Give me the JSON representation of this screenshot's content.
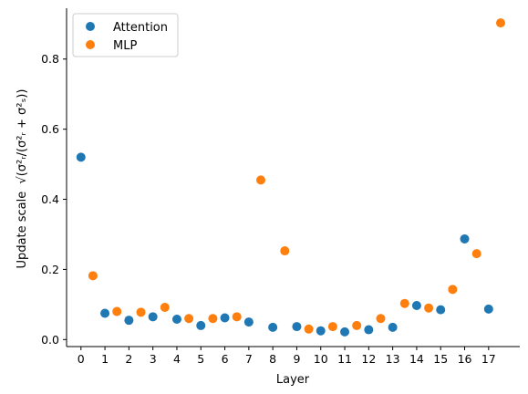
{
  "chart_data": {
    "type": "scatter",
    "xlabel": "Layer",
    "ylabel": "Update scale",
    "ylabel_math": "√(σ²ᵣ/(σ²ᵣ + σ²ₛ))",
    "xlim": [
      -0.6,
      18.3
    ],
    "ylim": [
      -0.02,
      0.945
    ],
    "x_ticks": [
      0,
      1,
      2,
      3,
      4,
      5,
      6,
      7,
      8,
      9,
      10,
      11,
      12,
      13,
      14,
      15,
      16,
      17
    ],
    "y_ticks": [
      0.0,
      0.2,
      0.4,
      0.6,
      0.8
    ],
    "y_tick_labels": [
      "0.0",
      "0.2",
      "0.4",
      "0.6",
      "0.8"
    ],
    "grid": false,
    "legend_position": "top-left",
    "series": [
      {
        "name": "Attention",
        "color": "#1f77b4",
        "points": [
          {
            "x": 0,
            "y": 0.52
          },
          {
            "x": 1,
            "y": 0.075
          },
          {
            "x": 2,
            "y": 0.055
          },
          {
            "x": 3,
            "y": 0.065
          },
          {
            "x": 4,
            "y": 0.058
          },
          {
            "x": 5,
            "y": 0.04
          },
          {
            "x": 6,
            "y": 0.062
          },
          {
            "x": 7,
            "y": 0.05
          },
          {
            "x": 8,
            "y": 0.035
          },
          {
            "x": 9,
            "y": 0.037
          },
          {
            "x": 10,
            "y": 0.025
          },
          {
            "x": 11,
            "y": 0.022
          },
          {
            "x": 12,
            "y": 0.028
          },
          {
            "x": 13,
            "y": 0.035
          },
          {
            "x": 14,
            "y": 0.097
          },
          {
            "x": 15,
            "y": 0.085
          },
          {
            "x": 16,
            "y": 0.287
          },
          {
            "x": 17,
            "y": 0.087
          }
        ]
      },
      {
        "name": "MLP",
        "color": "#ff7f0e",
        "points": [
          {
            "x": 0.5,
            "y": 0.182
          },
          {
            "x": 1.5,
            "y": 0.08
          },
          {
            "x": 2.5,
            "y": 0.078
          },
          {
            "x": 3.5,
            "y": 0.092
          },
          {
            "x": 4.5,
            "y": 0.06
          },
          {
            "x": 5.5,
            "y": 0.06
          },
          {
            "x": 6.5,
            "y": 0.065
          },
          {
            "x": 7.5,
            "y": 0.455
          },
          {
            "x": 8.5,
            "y": 0.253
          },
          {
            "x": 9.5,
            "y": 0.03
          },
          {
            "x": 10.5,
            "y": 0.037
          },
          {
            "x": 11.5,
            "y": 0.04
          },
          {
            "x": 12.5,
            "y": 0.06
          },
          {
            "x": 13.5,
            "y": 0.103
          },
          {
            "x": 14.5,
            "y": 0.09
          },
          {
            "x": 15.5,
            "y": 0.143
          },
          {
            "x": 16.5,
            "y": 0.245
          },
          {
            "x": 17.5,
            "y": 0.903
          }
        ]
      }
    ]
  }
}
